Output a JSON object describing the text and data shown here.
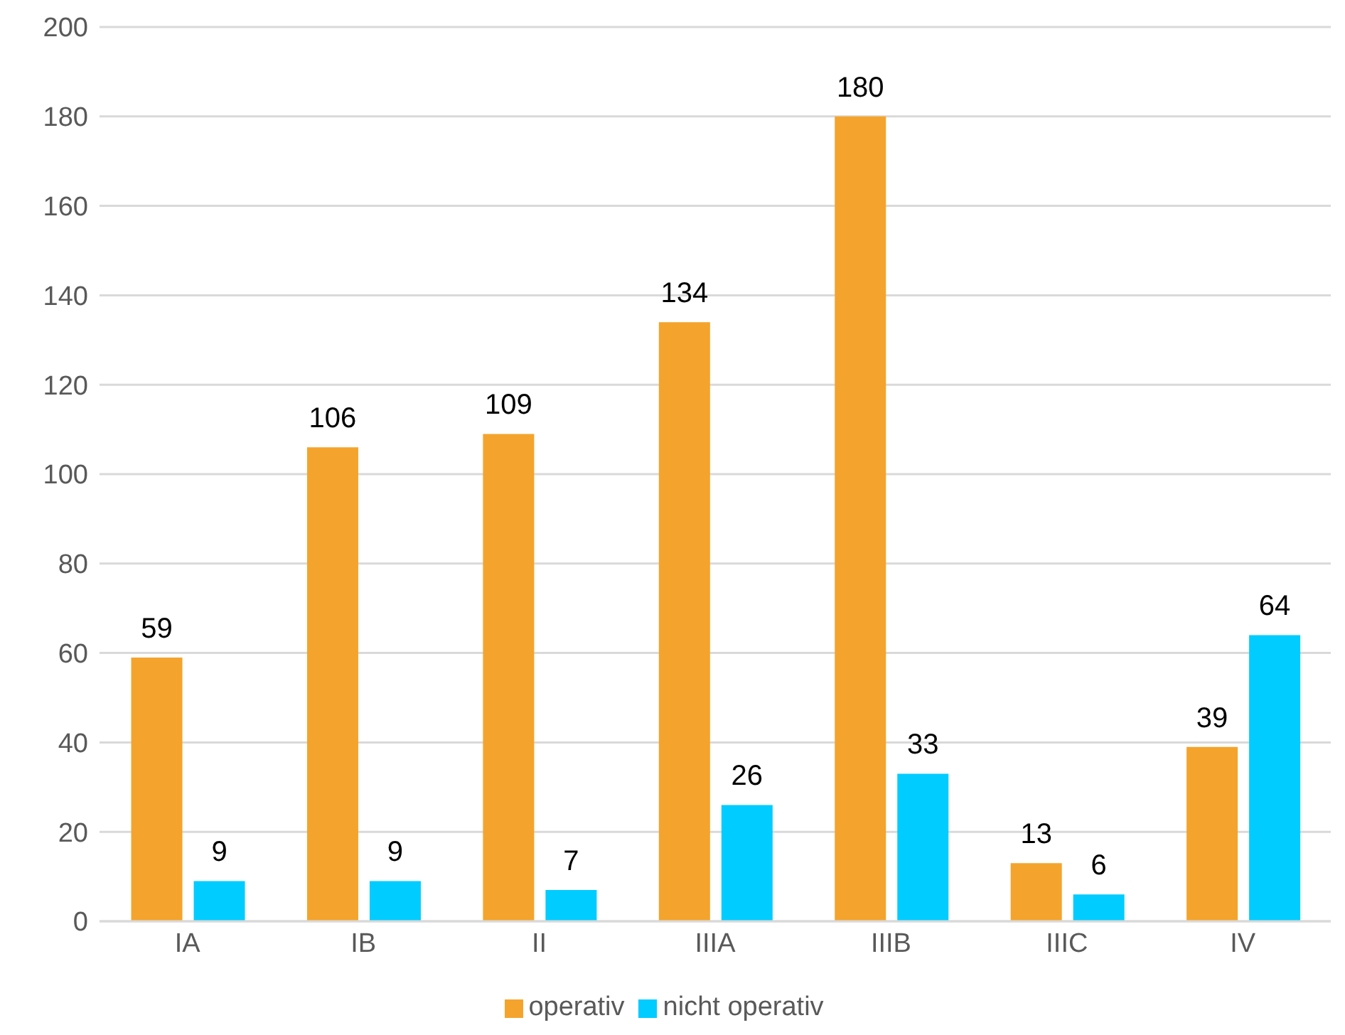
{
  "chart_data": {
    "type": "bar",
    "categories": [
      "IA",
      "IB",
      "II",
      "IIIA",
      "IIIB",
      "IIIC",
      "IV"
    ],
    "series": [
      {
        "name": "operativ",
        "color": "#f4a42c",
        "values": [
          59,
          106,
          109,
          134,
          180,
          13,
          39
        ]
      },
      {
        "name": "nicht operativ",
        "color": "#00ccff",
        "values": [
          9,
          9,
          7,
          26,
          33,
          6,
          64
        ]
      }
    ],
    "ylim": [
      0,
      200
    ],
    "yticks": [
      0,
      20,
      40,
      60,
      80,
      100,
      120,
      140,
      160,
      180,
      200
    ],
    "grid": "y",
    "legend": "bottom",
    "data_labels": true
  }
}
